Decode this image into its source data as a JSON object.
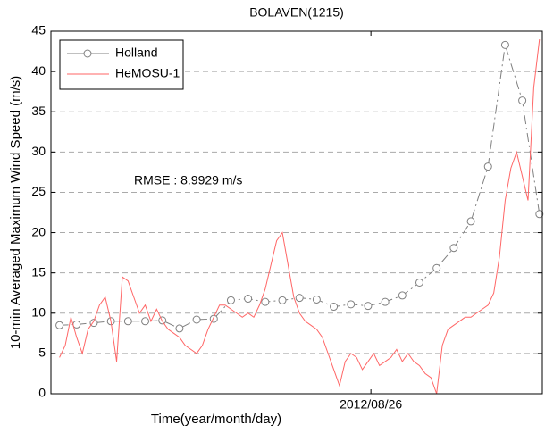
{
  "chart_data": {
    "type": "line",
    "title": "BOLAVEN(1215)",
    "xlabel": "Time(year/month/day)",
    "ylabel": "10-min Averaged Maximum Wind Speed (m/s)",
    "annotation": "RMSE :  8.9929 m/s",
    "xlim": [
      -1.5,
      84.5
    ],
    "xticks": [
      {
        "value": 54.5,
        "label": "2012/08/26"
      }
    ],
    "ylim": [
      0,
      45
    ],
    "yticks": [
      0,
      5,
      10,
      15,
      20,
      25,
      30,
      35,
      40,
      45
    ],
    "grid": true,
    "legend": "upper left",
    "series": [
      {
        "name": "Holland",
        "color": "#808080",
        "marker": "circle",
        "x": [
          0,
          3,
          6,
          9,
          12,
          15,
          18,
          21,
          24,
          27,
          30,
          33,
          36,
          39,
          42,
          45,
          48,
          51,
          54,
          57,
          60,
          63,
          66,
          69,
          72,
          75,
          78,
          81,
          84
        ],
        "values": [
          8.5,
          8.6,
          8.8,
          9.0,
          9.0,
          9.0,
          9.1,
          8.1,
          9.2,
          9.3,
          11.6,
          11.8,
          11.4,
          11.6,
          11.9,
          11.7,
          10.8,
          11.1,
          10.9,
          11.4,
          12.2,
          13.8,
          15.6,
          18.1,
          21.4,
          28.2,
          43.3,
          36.4,
          22.3
        ]
      },
      {
        "name": "HeMOSU-1",
        "color": "#ff6666",
        "x": [
          0,
          1,
          2,
          3,
          4,
          5,
          6,
          7,
          8,
          9,
          10,
          11,
          12,
          13,
          14,
          15,
          16,
          17,
          18,
          19,
          20,
          21,
          22,
          23,
          24,
          25,
          26,
          27,
          28,
          29,
          30,
          31,
          32,
          33,
          34,
          35,
          36,
          37,
          38,
          39,
          40,
          41,
          42,
          43,
          44,
          45,
          46,
          47,
          48,
          49,
          50,
          51,
          52,
          53,
          54,
          55,
          56,
          57,
          58,
          59,
          60,
          61,
          62,
          63,
          64,
          65,
          66,
          67,
          68,
          69,
          70,
          71,
          72,
          73,
          74,
          75,
          76,
          77,
          78,
          79,
          80,
          81,
          82,
          83,
          84
        ],
        "values": [
          4.5,
          6,
          9.5,
          7,
          5,
          8,
          9,
          11,
          12,
          9,
          4,
          14.5,
          14,
          12,
          10,
          11,
          9,
          10.5,
          9,
          8,
          7.5,
          7,
          6,
          5.5,
          5,
          6,
          8,
          9.5,
          11,
          11,
          10.5,
          10,
          9.5,
          10,
          9.5,
          11,
          13,
          16,
          19,
          20,
          16,
          12,
          10,
          9,
          8.5,
          8,
          7,
          5,
          3,
          1,
          4,
          5,
          4.5,
          3,
          4,
          5,
          3.5,
          4,
          4.5,
          5.5,
          4,
          5,
          4,
          3.5,
          2.5,
          2,
          0,
          6,
          8,
          8.5,
          9,
          9.5,
          9.5,
          10,
          10.5,
          11,
          12.5,
          17,
          24,
          28,
          30,
          27,
          24,
          38,
          44
        ]
      }
    ]
  }
}
